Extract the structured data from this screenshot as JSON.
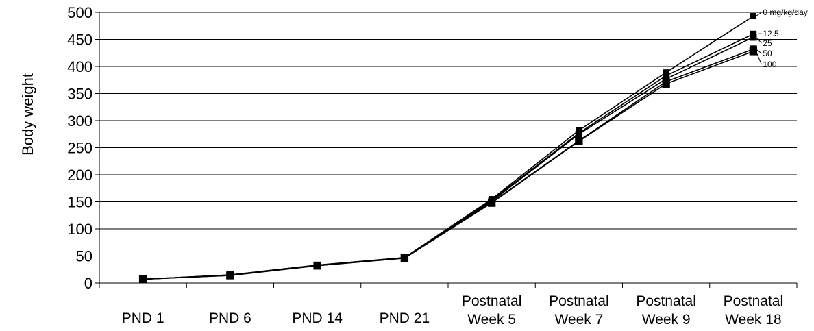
{
  "chart_data": {
    "type": "line",
    "ylabel": "Body weight",
    "xlabel": "",
    "ylim": [
      0,
      500
    ],
    "yticks": [
      0,
      50,
      100,
      150,
      200,
      250,
      300,
      350,
      400,
      450,
      500
    ],
    "grid": true,
    "categories": [
      [
        "PND 1"
      ],
      [
        "PND 6"
      ],
      [
        "PND 14"
      ],
      [
        "PND 21"
      ],
      [
        "Postnatal",
        "Week 5"
      ],
      [
        "Postnatal",
        "Week 7"
      ],
      [
        "Postnatal",
        "Week 9"
      ],
      [
        "Postnatal",
        "Week 18"
      ]
    ],
    "series": [
      {
        "name": "0 mg/kg/day",
        "values": [
          7,
          15,
          33,
          47,
          155,
          282,
          389,
          493
        ]
      },
      {
        "name": "12.5",
        "values": [
          7,
          15,
          33,
          47,
          153,
          277,
          383,
          460
        ]
      },
      {
        "name": "25",
        "values": [
          7,
          15,
          33,
          47,
          151,
          275,
          377,
          454
        ]
      },
      {
        "name": "50",
        "values": [
          7,
          14,
          32,
          46,
          149,
          263,
          372,
          432
        ]
      },
      {
        "name": "100",
        "values": [
          7,
          14,
          32,
          46,
          148,
          262,
          368,
          428
        ]
      }
    ],
    "legend": "series labels at right end of lines"
  }
}
